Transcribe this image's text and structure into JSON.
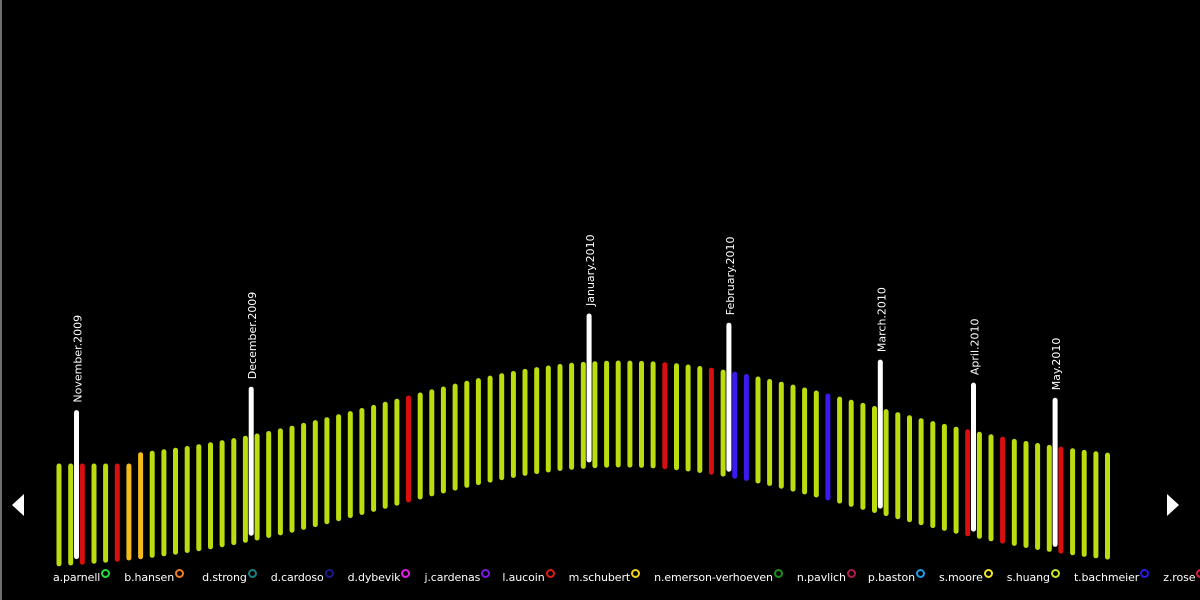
{
  "timeline": {
    "months": [
      {
        "label": "November.2009",
        "after_bar": 1
      },
      {
        "label": "December.2009",
        "after_bar": 16
      },
      {
        "label": "January.2010",
        "after_bar": 45
      },
      {
        "label": "February.2010",
        "after_bar": 57
      },
      {
        "label": "March.2010",
        "after_bar": 70
      },
      {
        "label": "April.2010",
        "after_bar": 78
      },
      {
        "label": "May.2010",
        "after_bar": 85
      }
    ],
    "bar_count": 91,
    "default_color": "#bcdc10",
    "month_marker_color": "#ffffff",
    "highlighted_bars": [
      {
        "index": 2,
        "color": "#d80f0f"
      },
      {
        "index": 5,
        "color": "#d80f0f"
      },
      {
        "index": 6,
        "color": "#f3bc1c"
      },
      {
        "index": 7,
        "color": "#f3bc1c"
      },
      {
        "index": 30,
        "color": "#d80f0f"
      },
      {
        "index": 52,
        "color": "#d80f0f"
      },
      {
        "index": 56,
        "color": "#d80f0f"
      },
      {
        "index": 58,
        "color": "#3a1aee"
      },
      {
        "index": 59,
        "color": "#3a1aee"
      },
      {
        "index": 66,
        "color": "#3a1aee"
      },
      {
        "index": 78,
        "color": "#d80f0f"
      },
      {
        "index": 81,
        "color": "#d80f0f"
      },
      {
        "index": 86,
        "color": "#d80f0f"
      }
    ]
  },
  "navigation": {
    "prev_icon": "triangle-left-icon",
    "next_icon": "triangle-right-icon"
  },
  "legend": [
    {
      "name": "a.parnell",
      "color": "#22e03a"
    },
    {
      "name": "b.hansen",
      "color": "#f07f1f"
    },
    {
      "name": "d.strong",
      "color": "#1a7f7f"
    },
    {
      "name": "d.cardoso",
      "color": "#1a1a8f"
    },
    {
      "name": "d.dybevik",
      "color": "#e51ee8"
    },
    {
      "name": "j.cardenas",
      "color": "#7a1ae8"
    },
    {
      "name": "l.aucoin",
      "color": "#e01a1a"
    },
    {
      "name": "m.schubert",
      "color": "#f3d21c"
    },
    {
      "name": "n.emerson-verhoeven",
      "color": "#1a8f1a"
    },
    {
      "name": "n.pavlich",
      "color": "#b01a4a"
    },
    {
      "name": "p.baston",
      "color": "#1a9fe8"
    },
    {
      "name": "s.moore",
      "color": "#f3e81c"
    },
    {
      "name": "s.huang",
      "color": "#c8e81c"
    },
    {
      "name": "t.bachmeier",
      "color": "#2a1ae8"
    },
    {
      "name": "z.rose",
      "color": "#e01a3a"
    }
  ]
}
